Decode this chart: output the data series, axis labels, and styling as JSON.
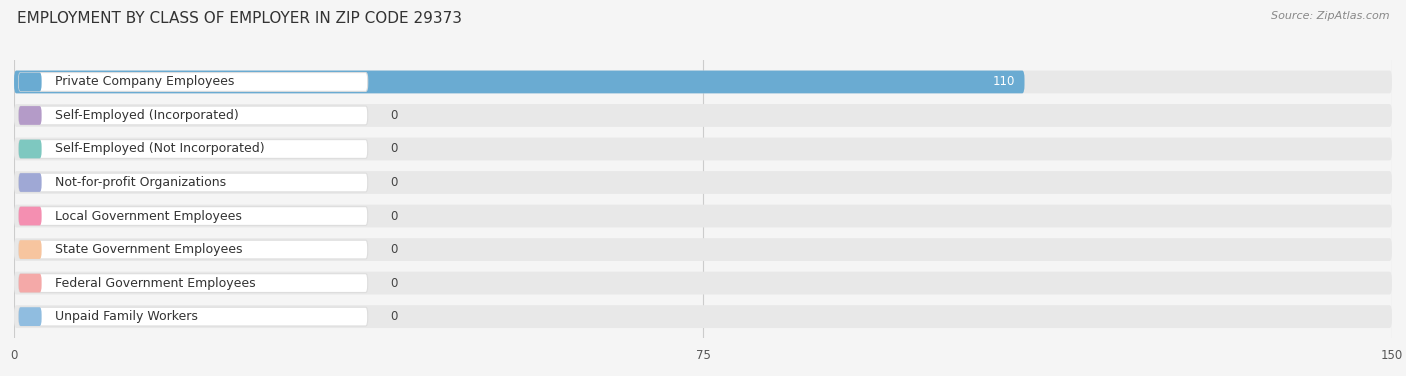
{
  "title": "EMPLOYMENT BY CLASS OF EMPLOYER IN ZIP CODE 29373",
  "source": "Source: ZipAtlas.com",
  "categories": [
    "Private Company Employees",
    "Self-Employed (Incorporated)",
    "Self-Employed (Not Incorporated)",
    "Not-for-profit Organizations",
    "Local Government Employees",
    "State Government Employees",
    "Federal Government Employees",
    "Unpaid Family Workers"
  ],
  "values": [
    110,
    0,
    0,
    0,
    0,
    0,
    0,
    0
  ],
  "bar_colors": [
    "#6aabd2",
    "#b49bc8",
    "#7ec8c0",
    "#9fa8d5",
    "#f48fb1",
    "#f7c59f",
    "#f4a9a8",
    "#90bde0"
  ],
  "label_bg_colors": [
    "#e8f4fb",
    "#ede6f5",
    "#e0f4f2",
    "#e4e7f5",
    "#fce8f0",
    "#fdf0e0",
    "#fce8e8",
    "#deeef8"
  ],
  "xlim": [
    0,
    150
  ],
  "xticks": [
    0,
    75,
    150
  ],
  "background_color": "#f0f0f0",
  "bar_bg_color": "#e2e2e2",
  "title_fontsize": 11,
  "source_fontsize": 8,
  "label_fontsize": 9,
  "value_fontsize": 8.5
}
